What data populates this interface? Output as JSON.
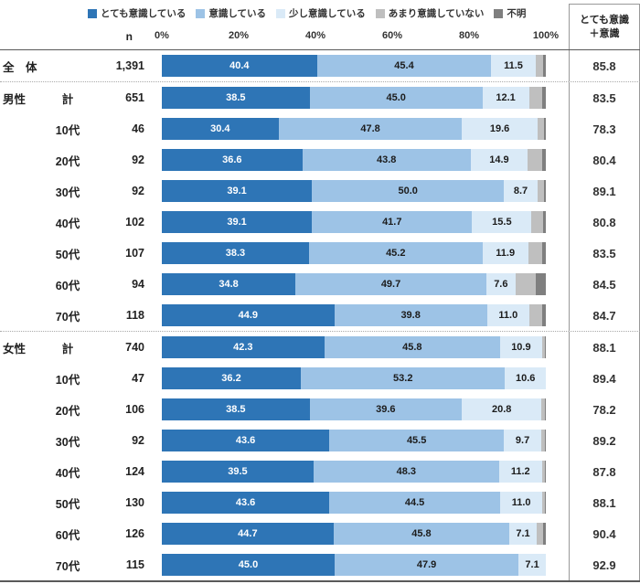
{
  "legend": [
    {
      "key": "very",
      "label": "とても意識している",
      "color": "#2e75b6"
    },
    {
      "key": "aware",
      "label": "意識している",
      "color": "#9dc3e6"
    },
    {
      "key": "slight",
      "label": "少し意識している",
      "color": "#daeaf7"
    },
    {
      "key": "not",
      "label": "あまり意識していない",
      "color": "#bfbfbf"
    },
    {
      "key": "unknown",
      "label": "不明",
      "color": "#7f7f7f"
    }
  ],
  "header": {
    "n_label": "n",
    "summary_line1": "とても意識",
    "summary_line2": "＋意識"
  },
  "axis": {
    "ticks": [
      "0%",
      "20%",
      "40%",
      "60%",
      "80%",
      "100%"
    ]
  },
  "chart_data": {
    "type": "bar",
    "stacked": true,
    "orientation": "horizontal",
    "value_unit": "%",
    "x_range": [
      0,
      100
    ],
    "legend_position": "top",
    "series_keys": [
      "very",
      "aware",
      "slight",
      "not",
      "unknown"
    ],
    "labeled_keys": [
      "very",
      "aware",
      "slight"
    ],
    "rows": [
      {
        "group": "全　体",
        "cat": "",
        "n": "1,391",
        "values": {
          "very": 40.4,
          "aware": 45.4,
          "slight": 11.5,
          "not": 2.0,
          "unknown": 0.7
        },
        "summary": "85.8",
        "divider_above": false
      },
      {
        "group": "男性",
        "cat": "計",
        "n": "651",
        "values": {
          "very": 38.5,
          "aware": 45.0,
          "slight": 12.1,
          "not": 3.4,
          "unknown": 1.0
        },
        "summary": "83.5",
        "divider_above": true
      },
      {
        "group": "",
        "cat": "10代",
        "n": "46",
        "values": {
          "very": 30.4,
          "aware": 47.8,
          "slight": 19.6,
          "not": 1.8,
          "unknown": 0.4
        },
        "summary": "78.3",
        "divider_above": false
      },
      {
        "group": "",
        "cat": "20代",
        "n": "92",
        "values": {
          "very": 36.6,
          "aware": 43.8,
          "slight": 14.9,
          "not": 3.7,
          "unknown": 1.0
        },
        "summary": "80.4",
        "divider_above": false
      },
      {
        "group": "",
        "cat": "30代",
        "n": "92",
        "values": {
          "very": 39.1,
          "aware": 50.0,
          "slight": 8.7,
          "not": 1.8,
          "unknown": 0.4
        },
        "summary": "89.1",
        "divider_above": false
      },
      {
        "group": "",
        "cat": "40代",
        "n": "102",
        "values": {
          "very": 39.1,
          "aware": 41.7,
          "slight": 15.5,
          "not": 2.9,
          "unknown": 0.8
        },
        "summary": "80.8",
        "divider_above": false
      },
      {
        "group": "",
        "cat": "50代",
        "n": "107",
        "values": {
          "very": 38.3,
          "aware": 45.2,
          "slight": 11.9,
          "not": 3.6,
          "unknown": 1.0
        },
        "summary": "83.5",
        "divider_above": false
      },
      {
        "group": "",
        "cat": "60代",
        "n": "94",
        "values": {
          "very": 34.8,
          "aware": 49.7,
          "slight": 7.6,
          "not": 5.3,
          "unknown": 2.6
        },
        "summary": "84.5",
        "divider_above": false
      },
      {
        "group": "",
        "cat": "70代",
        "n": "118",
        "values": {
          "very": 44.9,
          "aware": 39.8,
          "slight": 11.0,
          "not": 3.3,
          "unknown": 1.0
        },
        "summary": "84.7",
        "divider_above": false
      },
      {
        "group": "女性",
        "cat": "計",
        "n": "740",
        "values": {
          "very": 42.3,
          "aware": 45.8,
          "slight": 10.9,
          "not": 0.8,
          "unknown": 0.2
        },
        "summary": "88.1",
        "divider_above": true
      },
      {
        "group": "",
        "cat": "10代",
        "n": "47",
        "values": {
          "very": 36.2,
          "aware": 53.2,
          "slight": 10.6,
          "not": 0.0,
          "unknown": 0.0
        },
        "summary": "89.4",
        "divider_above": false
      },
      {
        "group": "",
        "cat": "20代",
        "n": "106",
        "values": {
          "very": 38.5,
          "aware": 39.6,
          "slight": 20.8,
          "not": 0.9,
          "unknown": 0.2
        },
        "summary": "78.2",
        "divider_above": false
      },
      {
        "group": "",
        "cat": "30代",
        "n": "92",
        "values": {
          "very": 43.6,
          "aware": 45.5,
          "slight": 9.7,
          "not": 0.9,
          "unknown": 0.3
        },
        "summary": "89.2",
        "divider_above": false
      },
      {
        "group": "",
        "cat": "40代",
        "n": "124",
        "values": {
          "very": 39.5,
          "aware": 48.3,
          "slight": 11.2,
          "not": 0.7,
          "unknown": 0.3
        },
        "summary": "87.8",
        "divider_above": false
      },
      {
        "group": "",
        "cat": "50代",
        "n": "130",
        "values": {
          "very": 43.6,
          "aware": 44.5,
          "slight": 11.0,
          "not": 0.6,
          "unknown": 0.3
        },
        "summary": "88.1",
        "divider_above": false
      },
      {
        "group": "",
        "cat": "60代",
        "n": "126",
        "values": {
          "very": 44.7,
          "aware": 45.8,
          "slight": 7.1,
          "not": 1.8,
          "unknown": 0.6
        },
        "summary": "90.4",
        "divider_above": false
      },
      {
        "group": "",
        "cat": "70代",
        "n": "115",
        "values": {
          "very": 45.0,
          "aware": 47.9,
          "slight": 7.1,
          "not": 0.0,
          "unknown": 0.0
        },
        "summary": "92.9",
        "divider_above": false
      }
    ]
  }
}
